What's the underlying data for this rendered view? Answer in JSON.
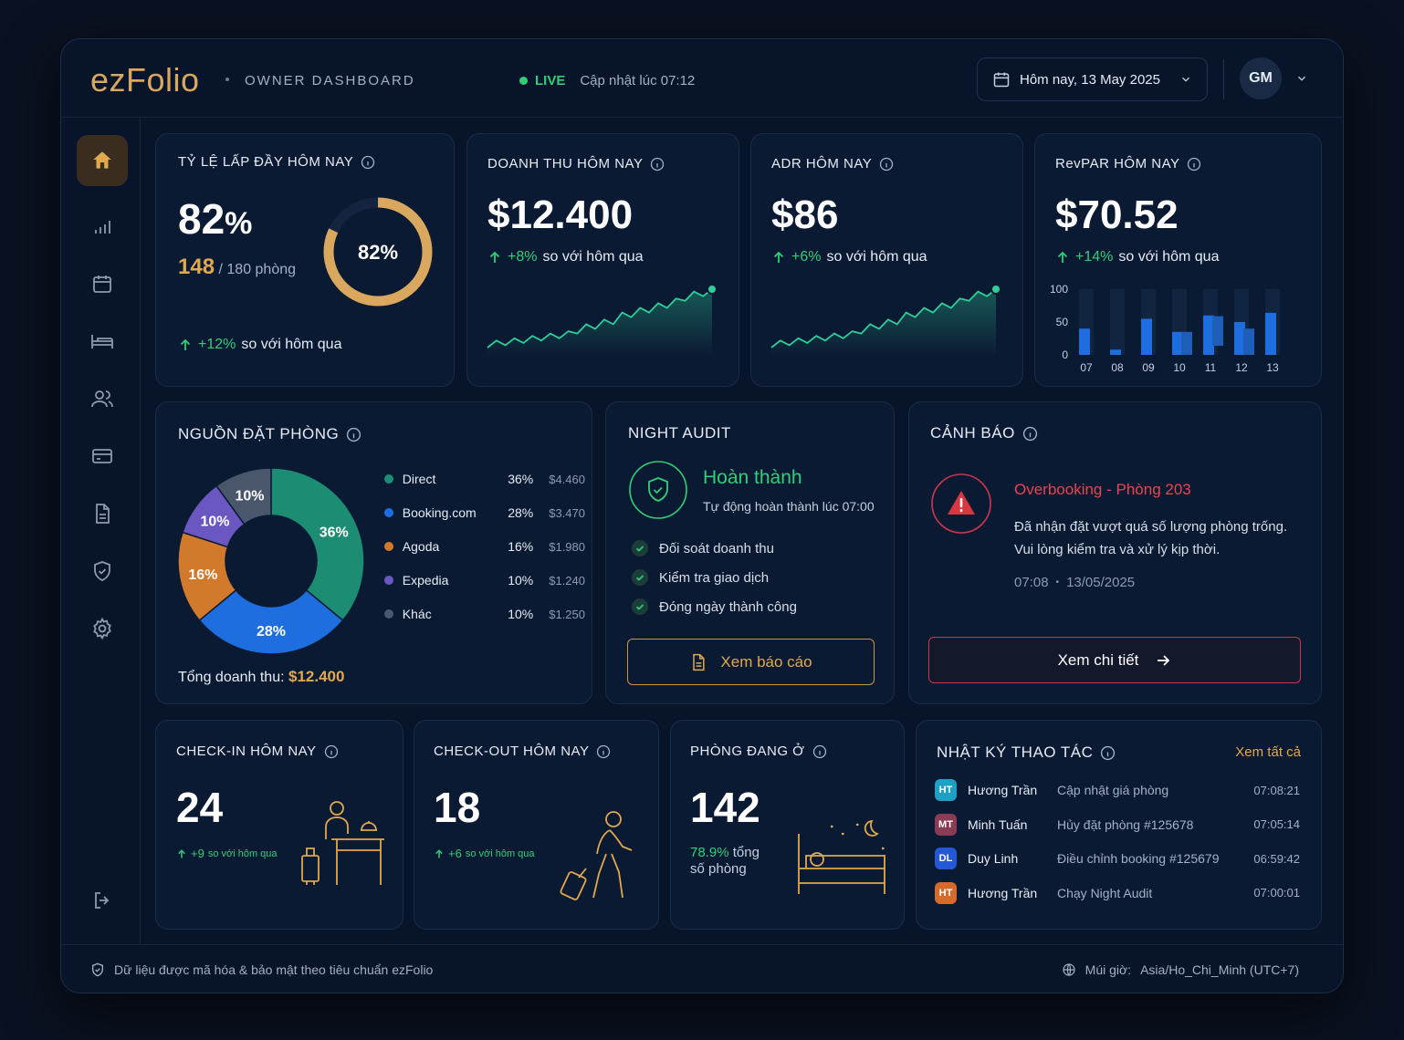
{
  "header": {
    "logo": "ezFolio",
    "subtitle": "OWNER DASHBOARD",
    "live_label": "LIVE",
    "updated": "Cập nhật lúc 07:12",
    "date_label": "Hôm nay, 13 May 2025",
    "avatar_initials": "GM"
  },
  "occupancy": {
    "title": "TỶ LỆ LẤP ĐẦY HÔM NAY",
    "value": "82",
    "unit": "%",
    "rooms_used": "148",
    "rooms_total": "/ 180 phòng",
    "ring_label": "82%",
    "ring_fraction": 0.82,
    "delta": "+12%",
    "delta_text": "so với hôm qua"
  },
  "revenue": {
    "title": "DOANH THU HÔM NAY",
    "value": "$12.400",
    "delta": "+8%",
    "delta_text": "so với hôm qua",
    "spark": [
      2,
      5,
      3,
      6,
      4,
      7,
      5,
      8,
      6,
      9,
      8,
      12,
      10,
      14,
      12,
      17,
      15,
      19,
      17,
      21,
      19,
      23,
      22,
      26,
      24,
      27
    ]
  },
  "adr": {
    "title": "ADR HÔM NAY",
    "value": "$86",
    "delta": "+6%",
    "delta_text": "so với hôm qua",
    "spark": [
      2,
      5,
      3,
      6,
      4,
      7,
      5,
      8,
      6,
      9,
      8,
      12,
      10,
      14,
      12,
      17,
      15,
      19,
      17,
      21,
      19,
      23,
      22,
      26,
      24,
      27
    ]
  },
  "revpar": {
    "title": "RevPAR HÔM NAY",
    "value": "$70.52",
    "delta": "+14%",
    "delta_text": "so với hôm qua",
    "chart_data": {
      "type": "bar",
      "categories": [
        "07",
        "08",
        "09",
        "10",
        "11",
        "12",
        "13"
      ],
      "series": [
        {
          "values": [
            40,
            8,
            55,
            35,
            60,
            50,
            64
          ]
        },
        {
          "values": [
            0,
            0,
            0,
            35,
            45,
            40,
            0
          ]
        }
      ],
      "ylim": [
        0,
        100
      ],
      "yticks": [
        "100",
        "50",
        "0"
      ]
    }
  },
  "sources": {
    "title": "NGUỒN ĐẶT PHÒNG",
    "total_label": "Tổng doanh thu:",
    "total_value": "$12.400",
    "chart_data": {
      "type": "pie",
      "labels": [
        "Direct",
        "Booking.com",
        "Agoda",
        "Expedia",
        "Khác"
      ],
      "values": [
        36,
        28,
        16,
        10,
        10
      ],
      "pct_labels": [
        "36%",
        "28%",
        "16%",
        "10%",
        "10%"
      ],
      "amounts": [
        "$4.460",
        "$3.470",
        "$1.980",
        "$1.240",
        "$1.250"
      ],
      "colors": [
        "#1c8c72",
        "#1e6ee0",
        "#d27a2b",
        "#6b57c2",
        "#4a566c"
      ]
    }
  },
  "audit": {
    "title": "NIGHT AUDIT",
    "status": "Hoàn thành",
    "status_sub": "Tự động hoàn thành lúc 07:00",
    "checks": [
      "Đối soát doanh thu",
      "Kiểm tra giao dịch",
      "Đóng ngày thành công"
    ],
    "button": "Xem báo cáo"
  },
  "alert": {
    "title": "CẢNH BÁO",
    "heading": "Overbooking - Phòng 203",
    "line1": "Đã nhận đặt vượt quá số lượng phòng trống.",
    "line2": "Vui lòng kiểm tra và xử lý kịp thời.",
    "time": "07:08",
    "date": "13/05/2025",
    "button": "Xem chi tiết"
  },
  "checkin": {
    "title": "CHECK-IN HÔM NAY",
    "value": "24",
    "delta": "+9",
    "delta_text": "so với hôm qua"
  },
  "checkout": {
    "title": "CHECK-OUT HÔM NAY",
    "value": "18",
    "delta": "+6",
    "delta_text": "so với hôm qua"
  },
  "inhouse": {
    "title": "PHÒNG ĐANG Ở",
    "value": "142",
    "pct": "78.9%",
    "pct_text1": "tổng",
    "pct_text2": "số phòng"
  },
  "log": {
    "title": "NHẬT KÝ THAO TÁC",
    "link": "Xem tất cả",
    "rows": [
      {
        "initials": "HT",
        "name": "Hương Trần",
        "action": "Cập nhật giá phòng",
        "time": "07:08:21",
        "color": "#1ea0c4"
      },
      {
        "initials": "MT",
        "name": "Minh Tuấn",
        "action": "Hủy đặt phòng #125678",
        "time": "07:05:14",
        "color": "#8a3c57"
      },
      {
        "initials": "DL",
        "name": "Duy Linh",
        "action": "Điều chỉnh booking #125679",
        "time": "06:59:42",
        "color": "#2459d6"
      },
      {
        "initials": "HT",
        "name": "Hương Trần",
        "action": "Chạy Night Audit",
        "time": "07:00:01",
        "color": "#d56a2a"
      }
    ]
  },
  "footer": {
    "security": "Dữ liệu được mã hóa & bảo mật theo tiêu chuẩn ezFolio",
    "timezone_label": "Múi giờ:",
    "timezone": "Asia/Ho_Chi_Minh (UTC+7)"
  },
  "nav_icons": [
    "home-icon",
    "chart-icon",
    "calendar-icon",
    "bed-icon",
    "users-icon",
    "card-icon",
    "document-icon",
    "shield-icon",
    "gear-icon",
    "logout-icon"
  ]
}
